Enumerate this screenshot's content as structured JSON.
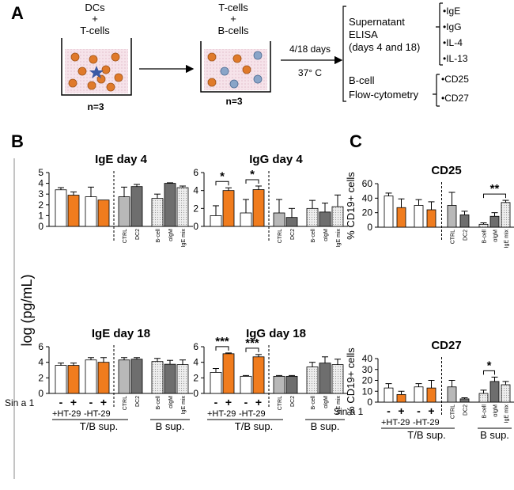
{
  "panels": {
    "A": "A",
    "B": "B",
    "C": "C"
  },
  "schematic": {
    "well1_top": "DCs",
    "well1_plus": "+",
    "well1_bottom": "T-cells",
    "well2_top": "T-cells",
    "well2_plus": "+",
    "well2_bottom": "B-cells",
    "n1": "n=3",
    "n2": "n=3",
    "days": "4/18 days",
    "temp": "37° C",
    "sup_title1": "Supernatant",
    "sup_title2": "ELISA",
    "sup_title3": "(days 4 and 18)",
    "elisa_items": [
      "•IgE",
      "•IgG",
      "•IL-4",
      "•IL-13"
    ],
    "flow_title1": "B-cell",
    "flow_title2": "Flow-cytometry",
    "flow_items": [
      "•CD25",
      "•CD27"
    ]
  },
  "shared": {
    "ylabel_B": "log  (pg/mL)",
    "ylabel_C": "% CD19+ cells",
    "sin_label": "Sin a 1",
    "minus": "-",
    "plus": "+",
    "ht_pos": "+HT-29",
    "ht_neg": "-HT-29",
    "tb_sup": "T/B sup.",
    "b_sup": "B sup.",
    "cat_ctrl": "CTRL",
    "cat_dc2": "DC2",
    "cat_bcell": "B-cell",
    "cat_aigm": "αIgM",
    "cat_igemix": "IgE mix"
  },
  "colors": {
    "white": "#ffffff",
    "orange": "#f07c1e",
    "gray_light": "#b8b8b8",
    "gray_dark": "#6e6e6e",
    "stipple": "#d9d9d9"
  },
  "chart_data": [
    {
      "type": "bar",
      "title": "IgE day 4",
      "ylim": [
        0,
        5
      ],
      "yticks": [
        0,
        1,
        2,
        3,
        4,
        5
      ],
      "categories": [
        "+HT-29 -",
        "+HT-29 +",
        "-HT-29 -",
        "-HT-29 +",
        "CTRL",
        "DC2",
        "B-cell",
        "αIgM",
        "IgE mix"
      ],
      "values": [
        3.4,
        2.9,
        2.75,
        2.45,
        2.75,
        3.7,
        2.6,
        4.0,
        3.6
      ],
      "errors": [
        0.2,
        0.3,
        0.9,
        0.0,
        0.9,
        0.2,
        0.4,
        0.05,
        0.15
      ],
      "significance": []
    },
    {
      "type": "bar",
      "title": "IgG day 4",
      "ylim": [
        0,
        6
      ],
      "yticks": [
        0,
        2,
        4,
        6
      ],
      "categories": [
        "+HT-29 -",
        "+HT-29 +",
        "-HT-29 -",
        "-HT-29 +",
        "CTRL",
        "DC2",
        "B-cell",
        "αIgM",
        "IgE mix"
      ],
      "values": [
        1.2,
        4.0,
        1.5,
        4.1,
        1.5,
        1.0,
        2.0,
        1.6,
        2.2
      ],
      "errors": [
        1.1,
        0.3,
        1.5,
        0.4,
        1.5,
        1.0,
        0.9,
        1.0,
        1.3
      ],
      "significance": [
        "*",
        "*"
      ]
    },
    {
      "type": "bar",
      "title": "IgE day 18",
      "ylim": [
        0,
        6
      ],
      "yticks": [
        0,
        2,
        4,
        6
      ],
      "categories": [
        "+HT-29 -",
        "+HT-29 +",
        "-HT-29 -",
        "-HT-29 +",
        "CTRL",
        "DC2",
        "B-cell",
        "αIgM",
        "IgE mix"
      ],
      "values": [
        3.6,
        3.6,
        4.3,
        4.0,
        4.3,
        4.4,
        4.1,
        3.75,
        3.7
      ],
      "errors": [
        0.3,
        0.3,
        0.3,
        0.6,
        0.3,
        0.2,
        0.4,
        0.5,
        0.6
      ],
      "significance": []
    },
    {
      "type": "bar",
      "title": "IgG day 18",
      "ylim": [
        0,
        6
      ],
      "yticks": [
        0,
        2,
        4,
        6
      ],
      "categories": [
        "+HT-29 -",
        "+HT-29 +",
        "-HT-29 -",
        "-HT-29 +",
        "CTRL",
        "DC2",
        "B-cell",
        "αIgM",
        "IgE mix"
      ],
      "values": [
        2.7,
        5.1,
        2.2,
        4.7,
        2.2,
        2.2,
        3.4,
        3.9,
        3.7
      ],
      "errors": [
        0.5,
        0.1,
        0.1,
        0.3,
        0.1,
        0.1,
        0.6,
        0.8,
        0.7
      ],
      "significance": [
        "***",
        "***"
      ]
    },
    {
      "type": "bar",
      "title": "CD25",
      "ylim": [
        0,
        60
      ],
      "yticks": [
        0,
        20,
        40,
        60
      ],
      "categories": [
        "+HT-29 -",
        "+HT-29 +",
        "-HT-29 -",
        "-HT-29 +",
        "CTRL",
        "DC2",
        "B-cell",
        "αIgM",
        "IgE mix"
      ],
      "values": [
        43,
        27,
        30,
        24,
        30,
        17,
        4,
        15,
        34
      ],
      "errors": [
        4,
        12,
        8,
        11,
        18,
        5,
        2,
        5,
        3
      ],
      "significance": [
        "**"
      ]
    },
    {
      "type": "bar",
      "title": "CD27",
      "ylim": [
        0,
        40
      ],
      "yticks": [
        0,
        10,
        20,
        30,
        40
      ],
      "categories": [
        "+HT-29 -",
        "+HT-29 +",
        "-HT-29 -",
        "-HT-29 +",
        "CTRL",
        "DC2",
        "B-cell",
        "αIgM",
        "IgE mix"
      ],
      "values": [
        13,
        7,
        14,
        13,
        14,
        3,
        8,
        19,
        16
      ],
      "errors": [
        4,
        3,
        3,
        7,
        6,
        1,
        3,
        4,
        3
      ],
      "significance": [
        "*"
      ]
    }
  ]
}
